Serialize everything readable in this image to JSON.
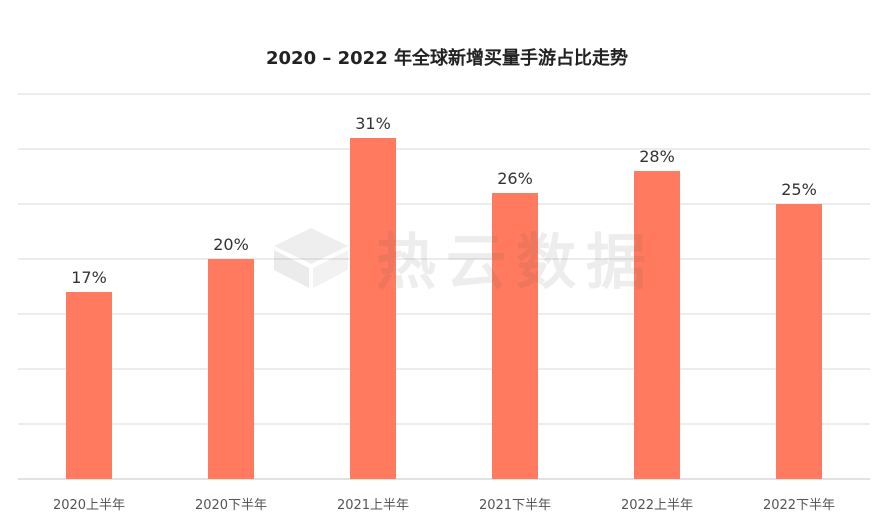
{
  "chart_data": {
    "type": "bar",
    "title": "2020 – 2022 年全球新增买量手游占比走势",
    "categories": [
      "2020上半年",
      "2020下半年",
      "2021上半年",
      "2021下半年",
      "2022上半年",
      "2022下半年"
    ],
    "values": [
      17,
      20,
      31,
      26,
      28,
      25
    ],
    "value_labels": [
      "17%",
      "20%",
      "31%",
      "26%",
      "28%",
      "25%"
    ],
    "ylim": [
      0,
      35
    ],
    "y_unit": "%",
    "grid": true,
    "legend": "none",
    "bar_color": "#FF7A5E",
    "grid_color": "#D9D9D9"
  },
  "watermark": {
    "text": "热云数据",
    "icon": "cube-logo-icon"
  }
}
